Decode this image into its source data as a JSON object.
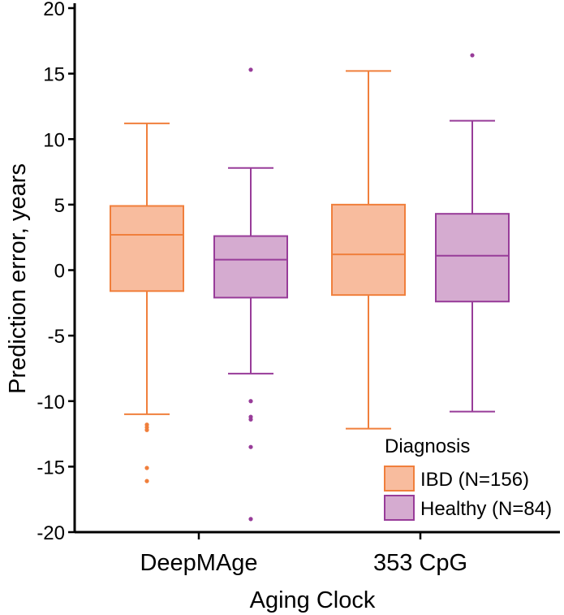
{
  "chart_data": {
    "type": "boxplot",
    "xlabel": "Aging Clock",
    "ylabel": "Prediction error, years",
    "ylim": [
      -20,
      20
    ],
    "yticks": [
      20,
      15,
      10,
      5,
      0,
      -5,
      -10,
      -15,
      -20
    ],
    "categories": [
      "DeepMAge",
      "353 CpG"
    ],
    "legend": {
      "title": "Diagnosis",
      "placement": "bottom-right",
      "entries": [
        "IBD (N=156)",
        "Healthy (N=84)"
      ]
    },
    "colors": {
      "IBD": {
        "fill": "#F8BC9E",
        "stroke": "#F07F3C"
      },
      "Healthy": {
        "fill": "#D5ABD0",
        "stroke": "#983C99"
      }
    },
    "series": [
      {
        "name": "IBD (N=156)",
        "key": "IBD",
        "boxes": [
          {
            "category": "DeepMAge",
            "whisker_low": -11.0,
            "q1": -1.6,
            "median": 2.7,
            "q3": 4.9,
            "whisker_high": 11.2,
            "outliers": [
              -11.8,
              -12.0,
              -12.2,
              -15.1,
              -16.1
            ]
          },
          {
            "category": "353 CpG",
            "whisker_low": -12.1,
            "q1": -1.9,
            "median": 1.2,
            "q3": 5.0,
            "whisker_high": 15.2,
            "outliers": []
          }
        ]
      },
      {
        "name": "Healthy (N=84)",
        "key": "Healthy",
        "boxes": [
          {
            "category": "DeepMAge",
            "whisker_low": -7.9,
            "q1": -2.1,
            "median": 0.8,
            "q3": 2.6,
            "whisker_high": 7.8,
            "outliers": [
              15.3,
              -10.0,
              -11.2,
              -11.4,
              -13.5,
              -19.0
            ]
          },
          {
            "category": "353 CpG",
            "whisker_low": -10.8,
            "q1": -2.4,
            "median": 1.1,
            "q3": 4.3,
            "whisker_high": 11.4,
            "outliers": [
              16.4
            ]
          }
        ]
      }
    ]
  }
}
